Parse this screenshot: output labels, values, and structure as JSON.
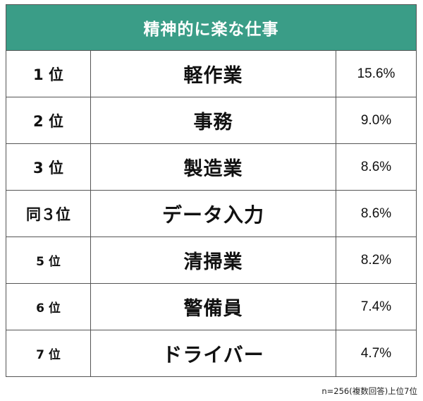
{
  "chart_data": {
    "type": "table",
    "title": "精神的に楽な仕事",
    "rows": [
      {
        "rank": "1 位",
        "job": "軽作業",
        "percent": "15.6%",
        "value": 15.6
      },
      {
        "rank": "2 位",
        "job": "事務",
        "percent": "9.0%",
        "value": 9.0
      },
      {
        "rank": "3 位",
        "job": "製造業",
        "percent": "8.6%",
        "value": 8.6
      },
      {
        "rank": "同３位",
        "job": "データ入力",
        "percent": "8.6%",
        "value": 8.6
      },
      {
        "rank": "5 位",
        "job": "清掃業",
        "percent": "8.2%",
        "value": 8.2
      },
      {
        "rank": "6 位",
        "job": "警備員",
        "percent": "7.4%",
        "value": 7.4
      },
      {
        "rank": "7 位",
        "job": "ドライバー",
        "percent": "4.7%",
        "value": 4.7
      }
    ],
    "footnote": "n=256(複数回答)上位7位",
    "colors": {
      "header_bg": "#3a9d87",
      "header_text": "#ffffff",
      "border": "#555555"
    }
  }
}
